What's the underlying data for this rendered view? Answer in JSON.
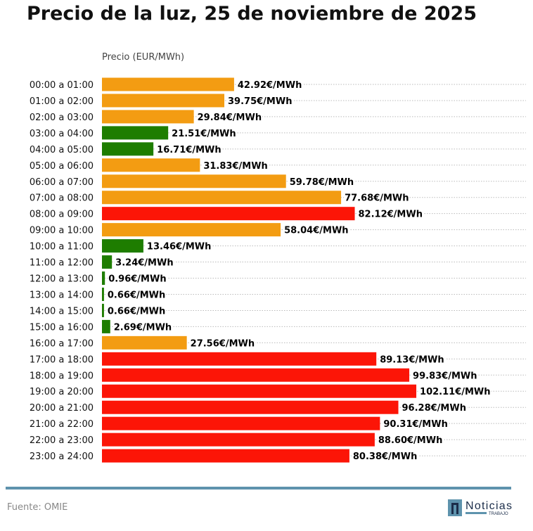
{
  "chart_data": {
    "type": "bar",
    "orientation": "horizontal",
    "title": "Precio de la luz, 25 de noviembre de 2025",
    "ylabel": "Precio (EUR/MWh)",
    "xlim": [
      0,
      110
    ],
    "grid": "dotted horizontal lines",
    "value_suffix": "€/MWh",
    "categories": [
      "00:00 a 01:00",
      "01:00 a 02:00",
      "02:00 a 03:00",
      "03:00 a 04:00",
      "04:00 a 05:00",
      "05:00 a 06:00",
      "06:00 a 07:00",
      "07:00 a 08:00",
      "08:00 a 09:00",
      "09:00 a 10:00",
      "10:00 a 11:00",
      "11:00 a 12:00",
      "12:00 a 13:00",
      "13:00 a 14:00",
      "14:00 a 15:00",
      "15:00 a 16:00",
      "16:00 a 17:00",
      "17:00 a 18:00",
      "18:00 a 19:00",
      "19:00 a 20:00",
      "20:00 a 21:00",
      "21:00 a 22:00",
      "22:00 a 23:00",
      "23:00 a 24:00"
    ],
    "values": [
      42.92,
      39.75,
      29.84,
      21.51,
      16.71,
      31.83,
      59.78,
      77.68,
      82.12,
      58.04,
      13.46,
      3.24,
      0.96,
      0.66,
      0.66,
      2.69,
      27.56,
      89.13,
      99.83,
      102.11,
      96.28,
      90.31,
      88.6,
      80.38
    ],
    "levels": [
      "mid",
      "mid",
      "mid",
      "low",
      "low",
      "mid",
      "mid",
      "mid",
      "high",
      "mid",
      "low",
      "low",
      "low",
      "low",
      "low",
      "low",
      "mid",
      "high",
      "high",
      "high",
      "high",
      "high",
      "high",
      "high"
    ],
    "colors": {
      "low": "#1e7d00",
      "mid": "#f39c12",
      "high": "#fc1507"
    }
  },
  "footer": {
    "source": "Fuente: OMIE",
    "logo_text": "Noticias",
    "logo_subtext": "TRABAJO",
    "rule_color": "#5e93ad"
  }
}
